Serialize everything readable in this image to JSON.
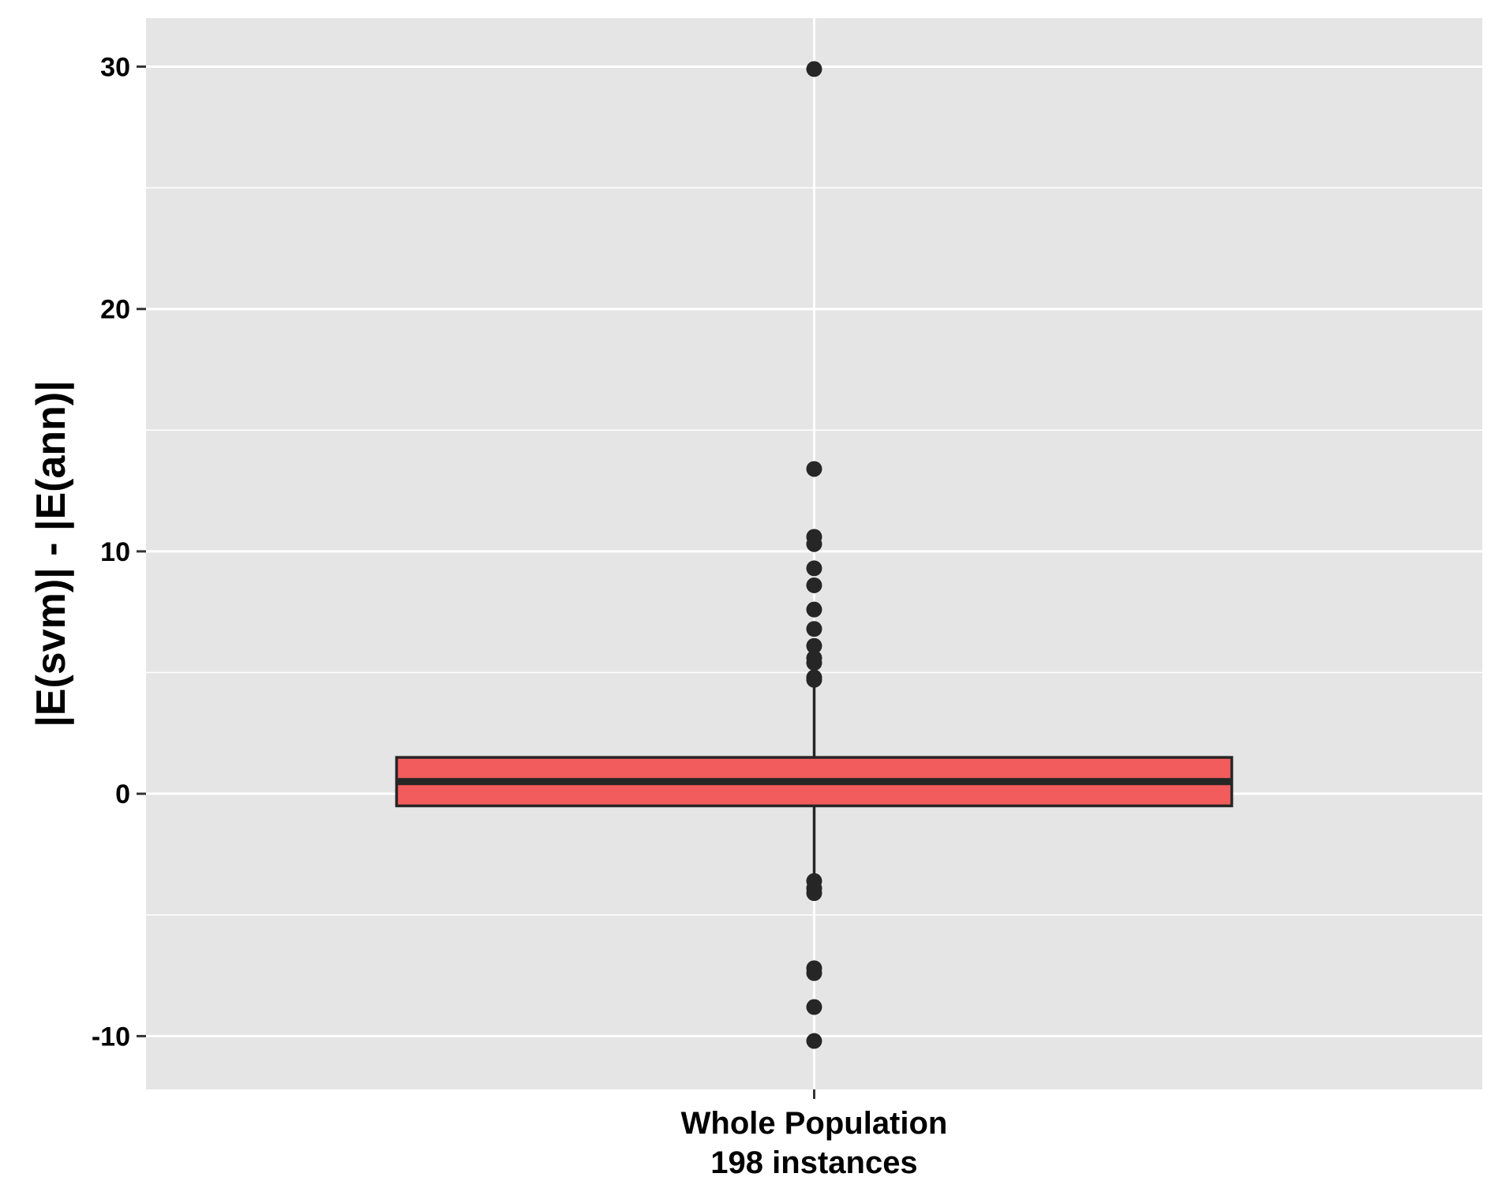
{
  "chart_data": {
    "type": "boxplot",
    "title": "",
    "xlabel": "",
    "ylabel": "|E(svm)| - |E(ann)|",
    "ylim": [
      -12.2,
      32.0
    ],
    "yticks": [
      -10,
      0,
      10,
      20,
      30
    ],
    "ytick_labels": [
      "-10",
      "0",
      "10",
      "20",
      "30"
    ],
    "grid": true,
    "legend": "none",
    "categories": [
      {
        "line1": "Whole Population",
        "line2": "198 instances"
      }
    ],
    "boxes": [
      {
        "q1": -0.5,
        "median": 0.5,
        "q3": 1.5,
        "whisker_low": -3.5,
        "whisker_high": 4.6,
        "outliers": [
          29.9,
          13.4,
          10.6,
          10.3,
          9.3,
          8.6,
          7.6,
          6.8,
          6.1,
          5.6,
          5.4,
          4.8,
          4.7,
          -3.6,
          -3.9,
          -4.1,
          -7.2,
          -7.4,
          -8.8,
          -10.2
        ],
        "fill": "#f25c5c"
      }
    ],
    "colors": {
      "panel_bg": "#e5e5e5",
      "grid": "#ffffff",
      "box_fill": "#f25c5c",
      "box_stroke": "#262626",
      "point": "#262626",
      "tick": "#333333"
    }
  }
}
